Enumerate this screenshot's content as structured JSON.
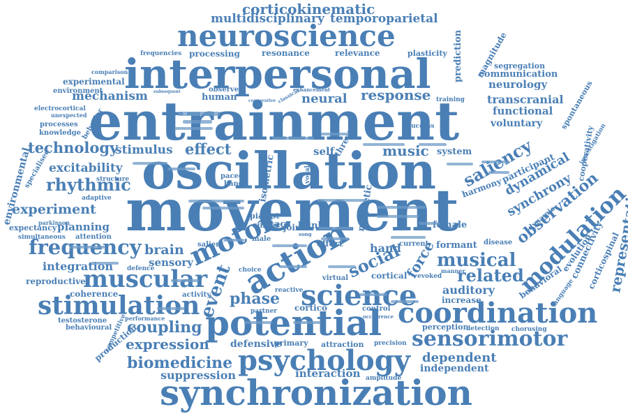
{
  "colors": {
    "primary": "#4a7fb5",
    "dark": "#3d6f9f",
    "light": "#6f9bc7",
    "background": "#ffffff"
  },
  "words": [
    "corticokinematic",
    "multidisciplinary",
    "temporoparietal",
    "neuroscience",
    "interpersonal",
    "entrainment",
    "oscillation",
    "movement",
    "frequencies",
    "processing",
    "resonance",
    "relevance",
    "plasticity",
    "prediction",
    "magnitude",
    "segregation",
    "communication",
    "comparison",
    "experimental",
    "subsequent",
    "environment",
    "mechanism",
    "human",
    "observed",
    "enhancement",
    "neural",
    "response",
    "neurology",
    "training",
    "transcranial",
    "electrocortical",
    "unexpected",
    "processes",
    "knowledge",
    "behavior",
    "success",
    "functional",
    "voluntary",
    "spontaneous",
    "investigation",
    "environmental",
    "specialised",
    "technology",
    "stimulus",
    "effect",
    "self",
    "threat",
    "music",
    "system",
    "saliency",
    "cooperativity",
    "excitability",
    "rhythmic",
    "structure",
    "adaptive",
    "experiment",
    "isometric",
    "paced",
    "band",
    "dynamical",
    "harmony",
    "participant",
    "synchrony",
    "representation",
    "planning",
    "expectancy",
    "parkinson",
    "pianist",
    "singer",
    "tacs",
    "joint",
    "blink",
    "magnetic",
    "female",
    "observation",
    "frequency",
    "brain",
    "motor",
    "simultaneous",
    "attention",
    "salient",
    "male",
    "effort",
    "hand",
    "current",
    "formant",
    "disease",
    "integration",
    "sensory",
    "action",
    "social",
    "force",
    "musical",
    "reproductive",
    "muscular",
    "defence",
    "choice",
    "virtual",
    "cortical",
    "evoked",
    "manner",
    "related",
    "modulation",
    "behavioral",
    "connectivity",
    "evolution",
    "corticospinal",
    "coherence",
    "activity",
    "phase",
    "science",
    "auditory",
    "stimulation",
    "event",
    "reactive",
    "partner",
    "increase",
    "testosterone",
    "cortico",
    "control",
    "coordination",
    "behavioural",
    "performance",
    "coupling",
    "potential",
    "perception",
    "detection",
    "chorusing",
    "expression",
    "defensive",
    "primary",
    "attraction",
    "precision",
    "sensorimotor",
    "competitive",
    "production",
    "biomedicine",
    "psychology",
    "dependent",
    "independent",
    "suppression",
    "interaction",
    "amplitude",
    "synchronization",
    "language",
    "occurrence",
    "cooperative",
    "classical",
    "dynamic",
    "vocal",
    "song"
  ]
}
